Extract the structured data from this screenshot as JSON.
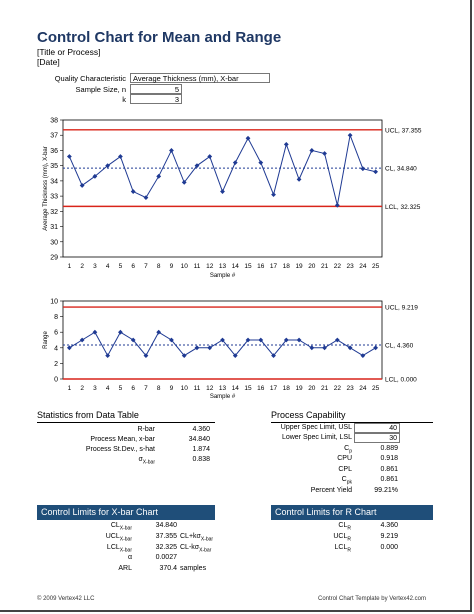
{
  "header": {
    "title": "Control Chart for Mean and Range",
    "title_or_process": "[Title or Process]",
    "date": "[Date]"
  },
  "inputs": {
    "quality_label": "Quality Characteristic",
    "quality_value": "Average Thickness (mm), X-bar",
    "sample_size_label": "Sample Size, n",
    "sample_size_value": "5",
    "k_label": "k",
    "k_value": "3"
  },
  "chart_data": [
    {
      "type": "line",
      "ylabel": "Average Thickness (mm), X-bar",
      "xlabel": "Sample #",
      "x": [
        1,
        2,
        3,
        4,
        5,
        6,
        7,
        8,
        9,
        10,
        11,
        12,
        13,
        14,
        15,
        16,
        17,
        18,
        19,
        20,
        21,
        22,
        23,
        24,
        25
      ],
      "ylim": [
        29,
        38
      ],
      "yticks": [
        29,
        30,
        31,
        32,
        33,
        34,
        35,
        36,
        37,
        38
      ],
      "series": [
        {
          "values": [
            35.6,
            33.7,
            34.3,
            35.0,
            35.6,
            33.3,
            32.9,
            34.3,
            36.0,
            33.9,
            35.0,
            35.6,
            33.3,
            35.2,
            36.8,
            35.2,
            33.1,
            36.4,
            34.1,
            36.0,
            35.8,
            32.4,
            37.0,
            34.8,
            34.6
          ]
        }
      ],
      "limits": [
        {
          "label": "UCL, 37.355",
          "value": 37.355,
          "color": "#d9241a",
          "style": "solid"
        },
        {
          "label": "CL, 34.840",
          "value": 34.84,
          "color": "#1f3a93",
          "style": "dashed"
        },
        {
          "label": "LCL, 32.325",
          "value": 32.325,
          "color": "#d9241a",
          "style": "solid"
        }
      ],
      "series_color": "#1f3a93"
    },
    {
      "type": "line",
      "ylabel": "Range",
      "xlabel": "Sample #",
      "x": [
        1,
        2,
        3,
        4,
        5,
        6,
        7,
        8,
        9,
        10,
        11,
        12,
        13,
        14,
        15,
        16,
        17,
        18,
        19,
        20,
        21,
        22,
        23,
        24,
        25
      ],
      "ylim": [
        0,
        10
      ],
      "yticks": [
        0,
        2,
        4,
        6,
        8,
        10
      ],
      "series": [
        {
          "values": [
            4,
            5,
            6,
            3,
            6,
            5,
            3,
            6,
            5,
            3,
            4,
            4,
            5,
            3,
            5,
            5,
            3,
            5,
            5,
            4,
            4,
            5,
            4,
            3,
            4
          ]
        }
      ],
      "limits": [
        {
          "label": "UCL, 9.219",
          "value": 9.219,
          "color": "#d9241a",
          "style": "solid"
        },
        {
          "label": "CL, 4.360",
          "value": 4.36,
          "color": "#1f3a93",
          "style": "dashed"
        },
        {
          "label": "LCL, 0.000",
          "value": 0.0,
          "color": "#d9241a",
          "style": "solid"
        }
      ],
      "series_color": "#1f3a93"
    }
  ],
  "stats": {
    "title": "Statistics from Data Table",
    "rbar_label": "R-bar",
    "rbar_value": "4.360",
    "mean_label": "Process Mean, x-bar",
    "mean_value": "34.840",
    "stdev_label": "Process St.Dev., s-hat",
    "stdev_value": "1.874",
    "sigma_label": "σ",
    "sigma_sub": "X-bar",
    "sigma_value": "0.838"
  },
  "capability": {
    "title": "Process Capability",
    "usl_label": "Upper Spec Limit, USL",
    "usl_value": "40",
    "lsl_label": "Lower Spec Limit, LSL",
    "lsl_value": "30",
    "cp_label": "C",
    "cp_sub": "p",
    "cp_value": "0.889",
    "cpu_label": "CPU",
    "cpu_value": "0.918",
    "cpl_label": "CPL",
    "cpl_value": "0.861",
    "cpk_label": "C",
    "cpk_sub": "pk",
    "cpk_value": "0.861",
    "yield_label": "Percent Yield",
    "yield_value": "99.21%"
  },
  "xbar_limits": {
    "title": "Control Limits for X-bar Chart",
    "cl_label": "CL",
    "cl_sub": "X-bar",
    "cl_value": "34.840",
    "ucl_label": "UCL",
    "ucl_sub": "X-bar",
    "ucl_value": "37.355",
    "ucl_note": "CL+kσ",
    "ucl_note_sub": "X-bar",
    "lcl_label": "LCL",
    "lcl_sub": "X-bar",
    "lcl_value": "32.325",
    "lcl_note": "CL-kσ",
    "lcl_note_sub": "X-bar",
    "alpha_label": "α",
    "alpha_value": "0.0027",
    "arl_label": "ARL",
    "arl_value": "370.4",
    "arl_unit": "samples"
  },
  "r_limits": {
    "title": "Control Limits for R Chart",
    "cl_label": "CL",
    "cl_sub": "R",
    "cl_value": "4.360",
    "ucl_label": "UCL",
    "ucl_sub": "R",
    "ucl_value": "9.219",
    "lcl_label": "LCL",
    "lcl_sub": "R",
    "lcl_value": "0.000"
  },
  "footer": {
    "left": "© 2009 Vertex42 LLC",
    "right": "Control Chart Template by Vertex42.com"
  }
}
